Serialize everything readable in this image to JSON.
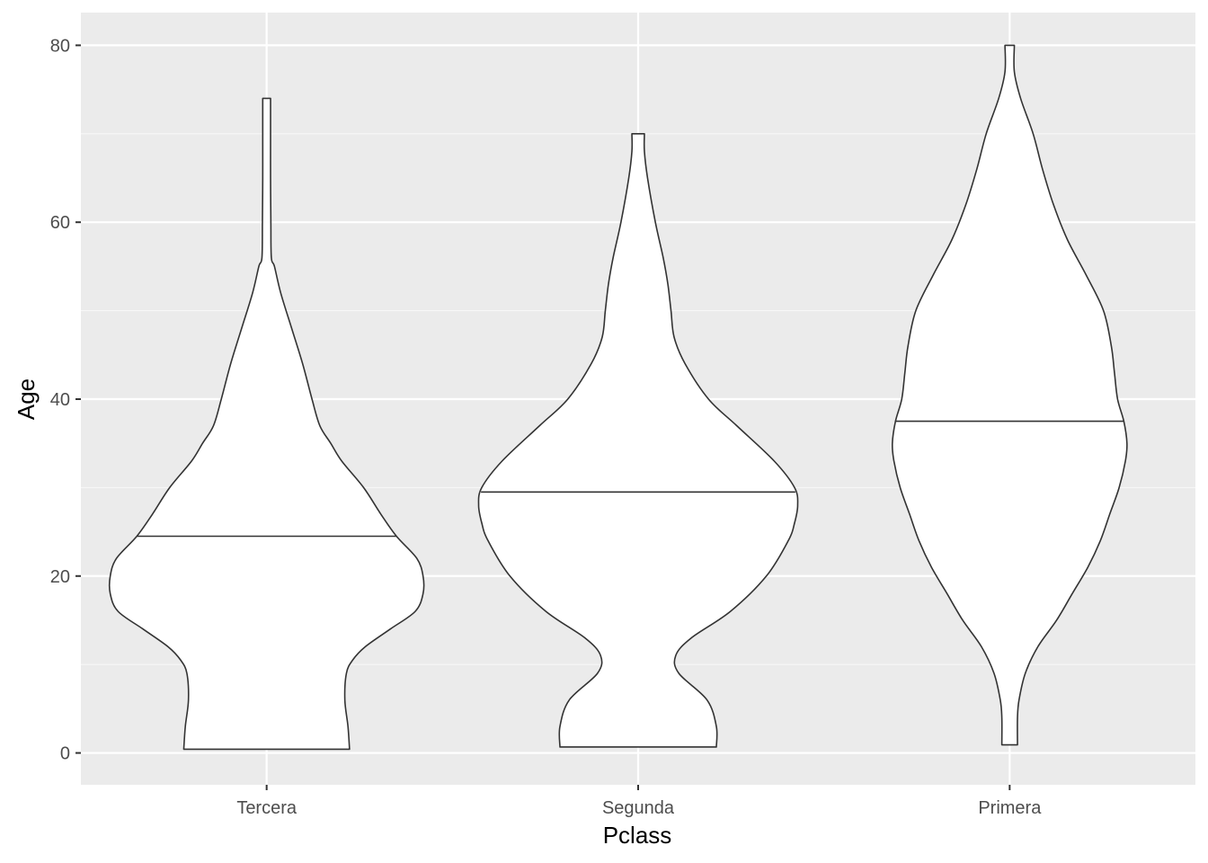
{
  "chart_data": {
    "type": "violin",
    "title": "",
    "xlabel": "Pclass",
    "ylabel": "Age",
    "categories": [
      "Tercera",
      "Segunda",
      "Primera"
    ],
    "ylim": [
      -3.6,
      83.7
    ],
    "yticks": [
      0,
      20,
      40,
      60,
      80
    ],
    "grid": true,
    "legend": "none",
    "colors": {
      "panel": "#ebebeb",
      "grid_major": "#ffffff",
      "grid_minor": "#f7f7f7",
      "violin_fill": "#ffffff",
      "violin_stroke": "#333333",
      "tick_label": "#4d4d4d",
      "tick_mark": "#333333",
      "axis_title": "#000000"
    },
    "series": [
      {
        "category": "Tercera",
        "median": 24.5,
        "density_width": [
          [
            0.42,
            0.53
          ],
          [
            3.0,
            0.52
          ],
          [
            6.0,
            0.5
          ],
          [
            9.0,
            0.51
          ],
          [
            10.5,
            0.55
          ],
          [
            12.0,
            0.63
          ],
          [
            14.0,
            0.79
          ],
          [
            16.0,
            0.95
          ],
          [
            18.0,
            1.0
          ],
          [
            20.0,
            1.0
          ],
          [
            22.0,
            0.96
          ],
          [
            24.5,
            0.83
          ],
          [
            27.0,
            0.73
          ],
          [
            30.0,
            0.62
          ],
          [
            33.0,
            0.48
          ],
          [
            35.0,
            0.41
          ],
          [
            37.0,
            0.34
          ],
          [
            40.0,
            0.29
          ],
          [
            44.0,
            0.23
          ],
          [
            48.0,
            0.16
          ],
          [
            52.0,
            0.09
          ],
          [
            55.0,
            0.05
          ],
          [
            56.0,
            0.03
          ],
          [
            60.0,
            0.027
          ],
          [
            65.0,
            0.025
          ],
          [
            70.0,
            0.025
          ],
          [
            74.0,
            0.025
          ]
        ]
      },
      {
        "category": "Segunda",
        "median": 29.5,
        "density_width": [
          [
            0.67,
            0.5
          ],
          [
            3.0,
            0.5
          ],
          [
            6.0,
            0.44
          ],
          [
            9.0,
            0.26
          ],
          [
            11.0,
            0.24
          ],
          [
            13.0,
            0.34
          ],
          [
            16.0,
            0.59
          ],
          [
            20.0,
            0.82
          ],
          [
            24.0,
            0.96
          ],
          [
            26.0,
            1.0
          ],
          [
            28.0,
            1.02
          ],
          [
            30.0,
            1.0
          ],
          [
            33.0,
            0.87
          ],
          [
            37.0,
            0.63
          ],
          [
            40.0,
            0.45
          ],
          [
            44.0,
            0.3
          ],
          [
            47.0,
            0.23
          ],
          [
            50.0,
            0.21
          ],
          [
            53.0,
            0.19
          ],
          [
            56.0,
            0.16
          ],
          [
            60.0,
            0.11
          ],
          [
            65.0,
            0.06
          ],
          [
            68.0,
            0.04
          ],
          [
            70.0,
            0.04
          ]
        ]
      },
      {
        "category": "Primera",
        "median": 37.5,
        "density_width": [
          [
            0.92,
            0.05
          ],
          [
            4.0,
            0.05
          ],
          [
            6.0,
            0.06
          ],
          [
            9.0,
            0.1
          ],
          [
            12.0,
            0.18
          ],
          [
            15.0,
            0.3
          ],
          [
            18.0,
            0.4
          ],
          [
            21.0,
            0.5
          ],
          [
            24.0,
            0.58
          ],
          [
            27.0,
            0.64
          ],
          [
            30.0,
            0.7
          ],
          [
            33.0,
            0.74
          ],
          [
            35.0,
            0.75
          ],
          [
            37.5,
            0.73
          ],
          [
            40.0,
            0.69
          ],
          [
            43.0,
            0.67
          ],
          [
            46.0,
            0.65
          ],
          [
            50.0,
            0.6
          ],
          [
            54.0,
            0.49
          ],
          [
            58.0,
            0.37
          ],
          [
            62.0,
            0.28
          ],
          [
            66.0,
            0.21
          ],
          [
            70.0,
            0.15
          ],
          [
            74.0,
            0.07
          ],
          [
            77.0,
            0.03
          ],
          [
            80.0,
            0.03
          ]
        ]
      }
    ]
  }
}
